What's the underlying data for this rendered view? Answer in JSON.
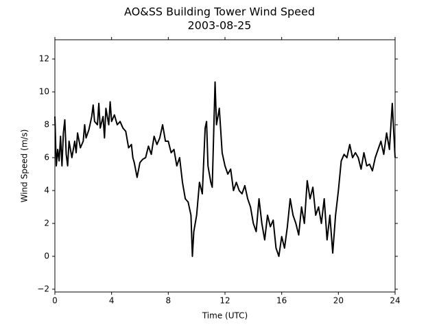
{
  "chart_data": {
    "type": "line",
    "title": "AO&SS Building Tower Wind Speed",
    "subtitle": "2003-08-25",
    "x_label": "Time (UTC)",
    "y_label": "Wind Speed (m/s)",
    "color": "#000000",
    "xlim": [
      0,
      24
    ],
    "xticks": [
      0,
      4,
      8,
      12,
      16,
      20,
      24
    ],
    "ylim": [
      -2.17,
      13.17
    ],
    "yticks": [
      {
        "value": -2,
        "label": "−2"
      },
      0,
      2,
      4,
      6,
      8,
      10,
      12
    ],
    "grid": false,
    "x": [
      0,
      0.1,
      0.2,
      0.3,
      0.4,
      0.5,
      0.6,
      0.7,
      0.8,
      0.9,
      1.0,
      1.2,
      1.4,
      1.5,
      1.6,
      1.8,
      2.0,
      2.1,
      2.2,
      2.4,
      2.6,
      2.7,
      2.8,
      3.0,
      3.1,
      3.2,
      3.4,
      3.5,
      3.6,
      3.8,
      3.9,
      4.0,
      4.2,
      4.4,
      4.6,
      4.8,
      5.0,
      5.2,
      5.4,
      5.5,
      5.6,
      5.8,
      6.0,
      6.2,
      6.4,
      6.6,
      6.8,
      7.0,
      7.2,
      7.4,
      7.6,
      7.8,
      8.0,
      8.2,
      8.4,
      8.6,
      8.8,
      9.0,
      9.2,
      9.4,
      9.6,
      9.7,
      9.8,
      10.0,
      10.2,
      10.4,
      10.6,
      10.7,
      10.8,
      11.0,
      11.1,
      11.3,
      11.4,
      11.6,
      11.8,
      12.0,
      12.2,
      12.4,
      12.6,
      12.8,
      13.0,
      13.2,
      13.4,
      13.6,
      13.8,
      14.0,
      14.2,
      14.4,
      14.6,
      14.8,
      15.0,
      15.2,
      15.4,
      15.6,
      15.8,
      16.0,
      16.2,
      16.4,
      16.6,
      16.8,
      17.0,
      17.2,
      17.4,
      17.6,
      17.8,
      18.0,
      18.2,
      18.4,
      18.6,
      18.8,
      19.0,
      19.2,
      19.4,
      19.6,
      19.8,
      20.0,
      20.2,
      20.4,
      20.6,
      20.8,
      21.0,
      21.2,
      21.4,
      21.6,
      21.8,
      22.0,
      22.2,
      22.4,
      22.6,
      22.8,
      23.0,
      23.2,
      23.4,
      23.6,
      23.8,
      24
    ],
    "values": [
      8.5,
      5.5,
      6.5,
      5.8,
      7.3,
      5.5,
      7.5,
      8.3,
      6.2,
      5.5,
      7.0,
      6.0,
      7.0,
      6.3,
      7.5,
      6.6,
      7.0,
      8.0,
      7.2,
      7.7,
      8.5,
      9.2,
      8.2,
      8.0,
      9.3,
      7.8,
      8.5,
      7.2,
      9.0,
      8.0,
      9.4,
      8.2,
      8.6,
      8.0,
      8.2,
      7.8,
      7.6,
      6.6,
      6.8,
      6.0,
      5.7,
      4.8,
      5.7,
      5.9,
      6.0,
      6.7,
      6.2,
      7.3,
      6.8,
      7.2,
      8.0,
      7.0,
      7.0,
      6.3,
      6.5,
      5.5,
      6.0,
      4.5,
      3.5,
      3.3,
      2.5,
      0.0,
      1.5,
      2.5,
      4.5,
      3.8,
      7.8,
      8.2,
      5.5,
      4.5,
      4.2,
      10.6,
      8.0,
      9.0,
      6.3,
      5.5,
      5.0,
      5.3,
      4.0,
      4.5,
      4.0,
      3.8,
      4.3,
      3.5,
      3.0,
      2.0,
      1.5,
      3.5,
      2.0,
      1.0,
      2.5,
      1.8,
      2.2,
      0.5,
      0.0,
      1.2,
      0.5,
      1.8,
      3.5,
      2.5,
      2.0,
      1.3,
      3.0,
      2.0,
      4.6,
      3.5,
      4.2,
      2.5,
      3.0,
      2.0,
      3.5,
      1.0,
      2.5,
      0.2,
      2.5,
      4.0,
      5.8,
      6.2,
      6.0,
      6.8,
      6.0,
      6.3,
      6.0,
      5.3,
      6.3,
      5.5,
      5.6,
      5.2,
      6.0,
      6.5,
      7.0,
      6.2,
      7.5,
      6.5,
      9.3,
      6.0
    ]
  }
}
